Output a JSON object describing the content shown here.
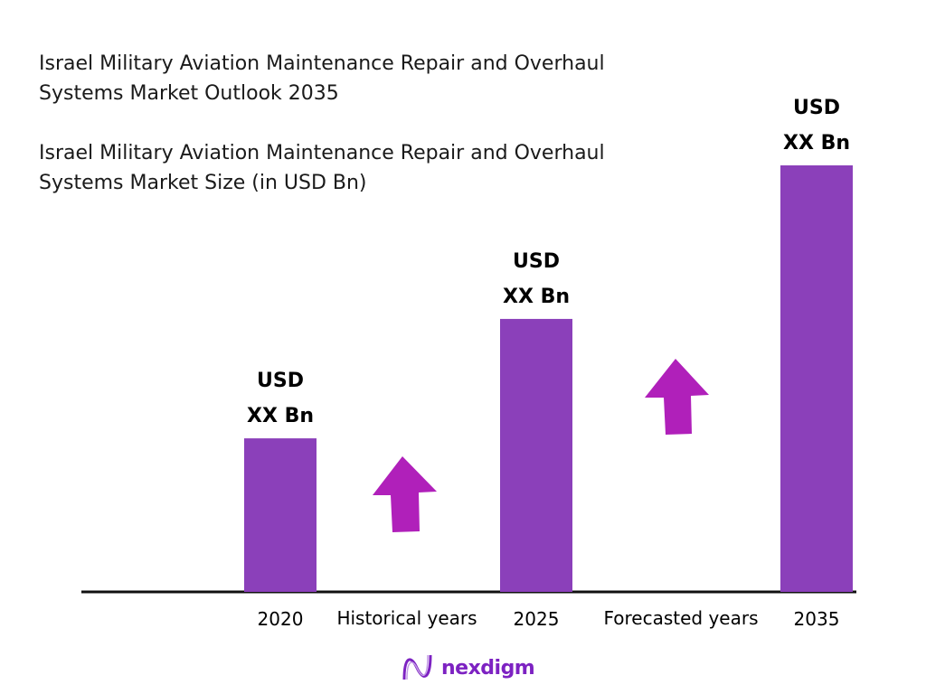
{
  "chart_data": {
    "type": "bar",
    "title": "Israel Military Aviation Maintenance Repair and Overhaul Systems Market Outlook 2035",
    "subtitle": "Israel Military Aviation Maintenance Repair and Overhaul Systems Market Size (in USD Bn)",
    "categories": [
      "2020",
      "2025",
      "2035"
    ],
    "values_relative_percent_of_max": [
      36,
      64,
      100
    ],
    "data_labels": [
      {
        "line1": "USD",
        "line2": "XX Bn"
      },
      {
        "line1": "USD",
        "line2": "XX Bn"
      },
      {
        "line1": "USD",
        "line2": "XX Bn"
      }
    ],
    "period_labels": [
      "Historical years",
      "Forecasted years"
    ],
    "grid": false,
    "legend": "none",
    "colors": {
      "bar": "#8B40BA",
      "arrow": "#B020BA",
      "axis": "#111111"
    }
  },
  "brand": {
    "name": "nexdigm",
    "color": "#7D22C2"
  }
}
